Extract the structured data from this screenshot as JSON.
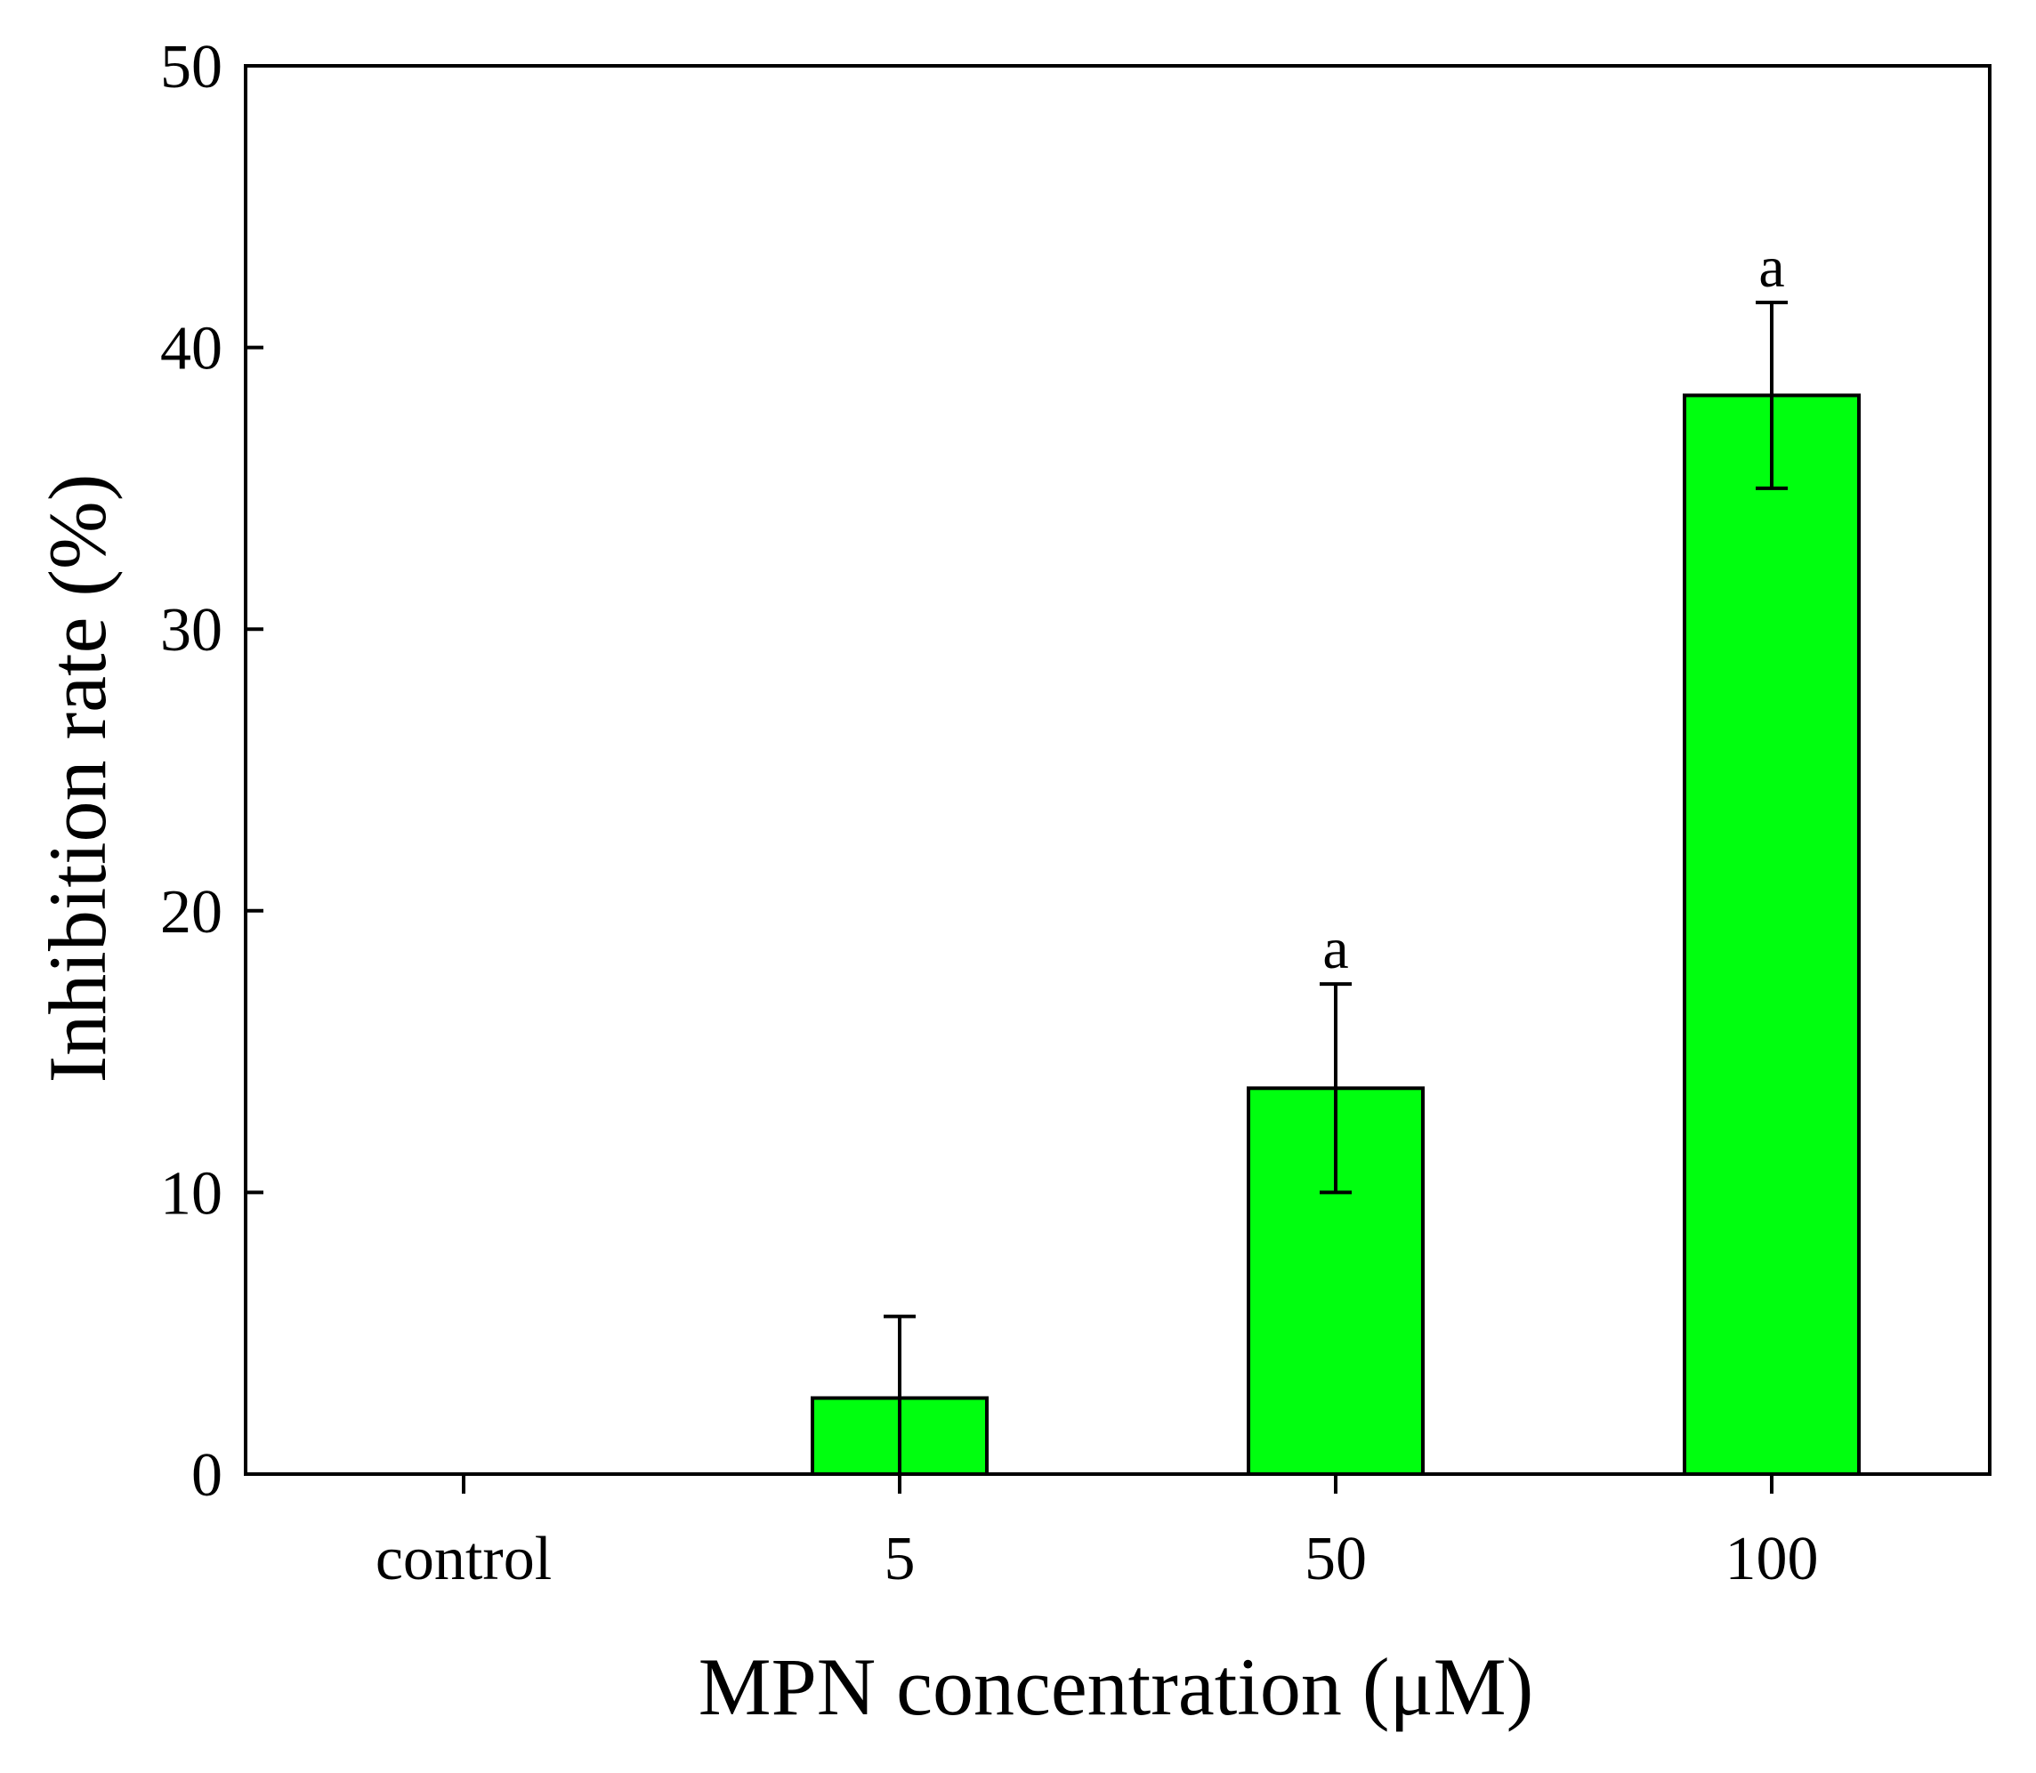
{
  "chart_data": {
    "type": "bar",
    "title": "",
    "xlabel": "MPN concentration (μM)",
    "ylabel": "Inhibition rate (%)",
    "categories": [
      "control",
      "5",
      "50",
      "100"
    ],
    "values": [
      0,
      2.7,
      13.7,
      38.3
    ],
    "error_upper": [
      0,
      5.6,
      17.4,
      41.6
    ],
    "error_lower": [
      0,
      0,
      10.0,
      35.0
    ],
    "significance": [
      "",
      "",
      "a",
      "a"
    ],
    "ylim": [
      0,
      50
    ],
    "yticks": [
      0,
      10,
      20,
      30,
      40,
      50
    ],
    "ytick_labels": [
      "0",
      "10",
      "20",
      "30",
      "40",
      "50"
    ],
    "grid": false,
    "legend": "none",
    "colors": {
      "bar_fill": "#00ff0f",
      "bar_edge": "#000000",
      "axis": "#000000",
      "error_bar": "#000000"
    }
  }
}
